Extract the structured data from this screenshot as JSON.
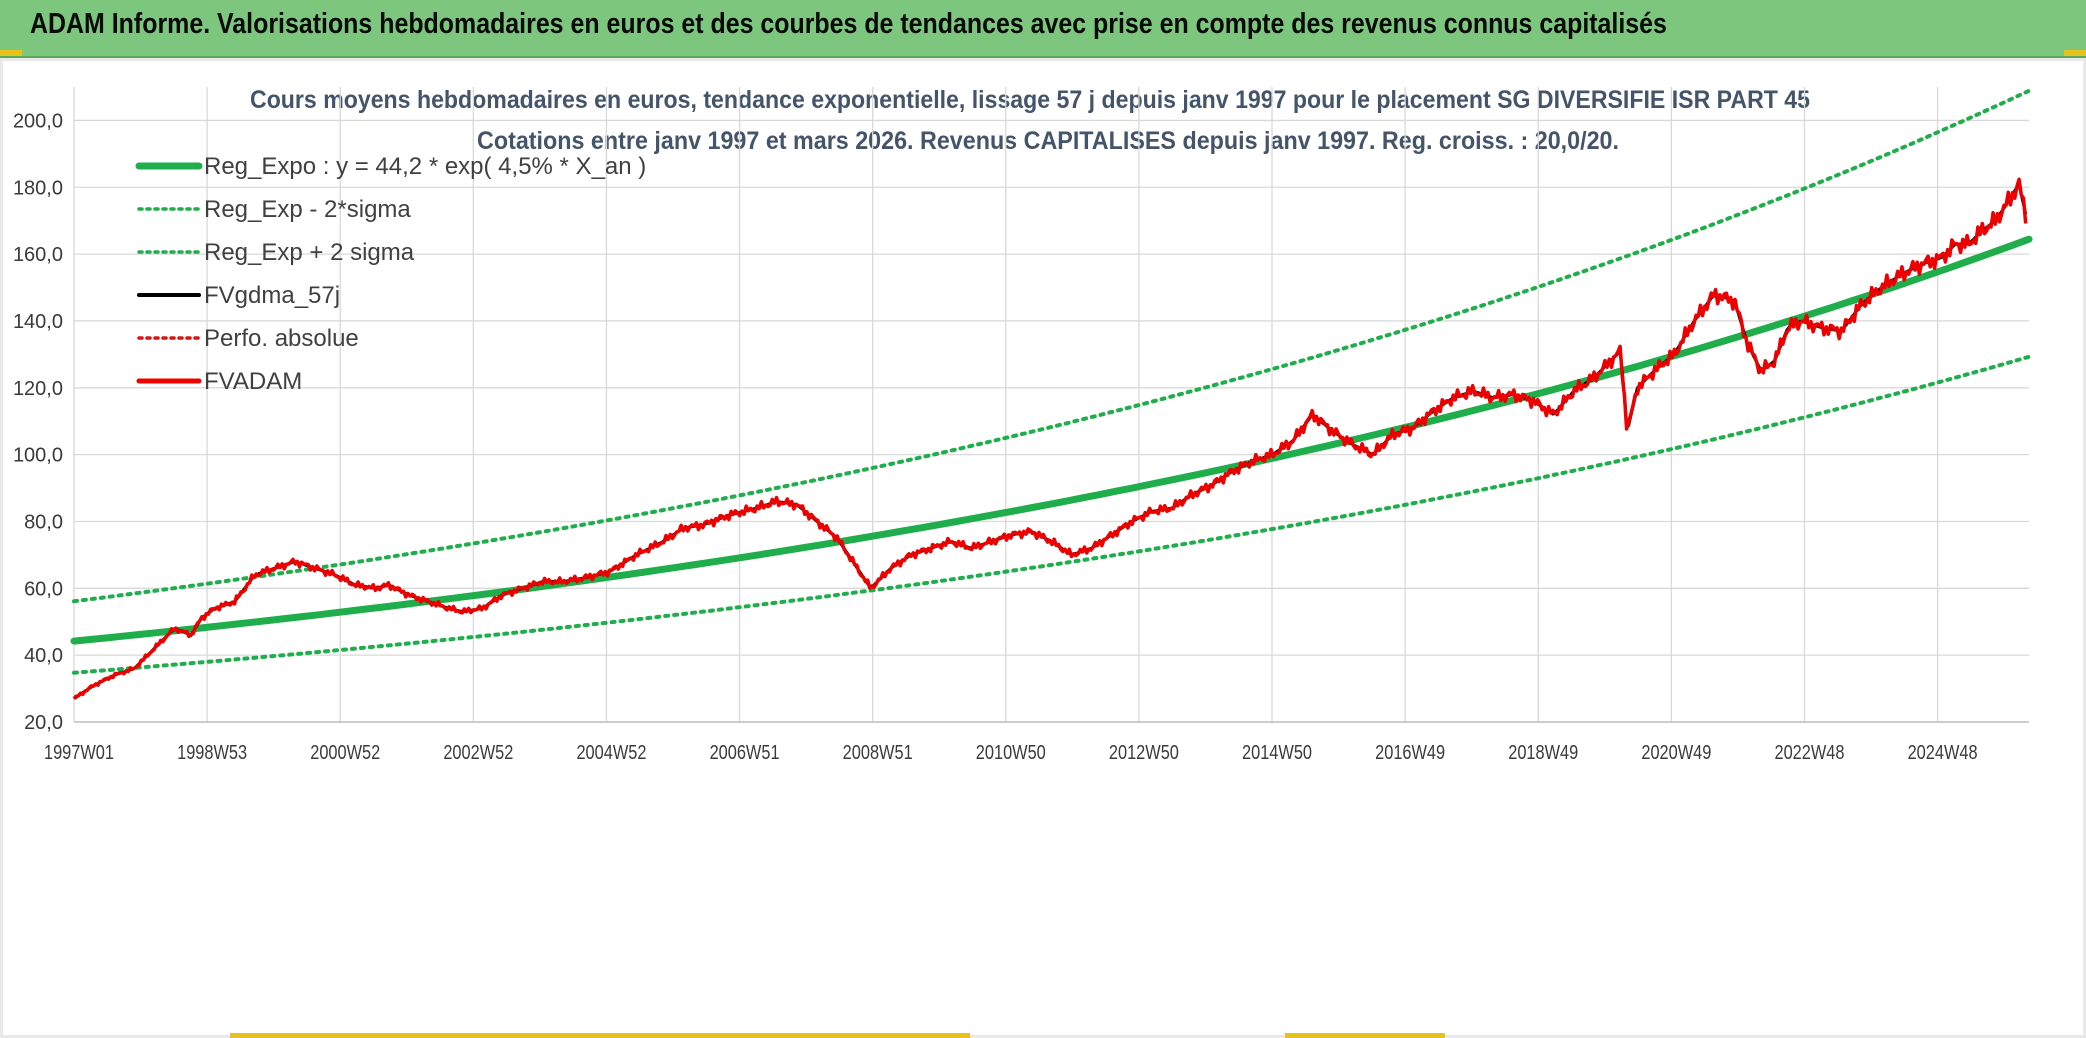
{
  "banner": {
    "title": "ADAM Informe. Valorisations hebdomadaires en euros et des courbes de tendances avec prise en compte des revenus connus capitalisés",
    "color": "#7dc67e"
  },
  "chart_data": {
    "type": "line",
    "title": "Cours moyens hebdomadaires en euros, tendance exponentielle, lissage 57 j depuis janv 1997 pour le placement SG DIVERSIFIE ISR PART 45",
    "subtitle": "Cotations entre janv 1997 et mars 2026. Revenus CAPITALISES depuis janv 1997. Reg. croiss. : 20,0/20.",
    "xlabel": "",
    "ylabel": "",
    "ylim": [
      20,
      210
    ],
    "xlim": [
      1997.0,
      2026.2
    ],
    "grid": true,
    "legend_position": "top-left",
    "y_ticks": [
      "20,0",
      "40,0",
      "60,0",
      "80,0",
      "100,0",
      "120,0",
      "140,0",
      "160,0",
      "180,0",
      "200,0"
    ],
    "x_ticks": [
      "1997W01",
      "1998W53",
      "2000W52",
      "2002W52",
      "2004W52",
      "2006W51",
      "2008W51",
      "2010W50",
      "2012W50",
      "2014W50",
      "2016W49",
      "2018W49",
      "2020W49",
      "2022W48",
      "2024W48"
    ],
    "series": [
      {
        "name": "Reg_Expo : y = 44,2 * exp( 4,5% *  X_an )",
        "kind": "trend",
        "color": "#1fae4b",
        "style": "solid",
        "a": 44.2,
        "rate": 0.045,
        "factor": 1.0
      },
      {
        "name": "Reg_Exp - 2*sigma",
        "kind": "trend",
        "color": "#1fae4b",
        "style": "dotted",
        "a": 44.2,
        "rate": 0.045,
        "factor": 0.786
      },
      {
        "name": "Reg_Exp + 2 sigma",
        "kind": "trend",
        "color": "#1fae4b",
        "style": "dotted",
        "a": 44.2,
        "rate": 0.045,
        "factor": 1.27
      },
      {
        "name": "FVgdma_57j",
        "kind": "smoothed",
        "color": "#000000",
        "style": "solid"
      },
      {
        "name": "Perfo. absolue",
        "kind": "absolute",
        "color": "#e01010",
        "style": "dotted"
      },
      {
        "name": "FVADAM",
        "kind": "price",
        "color": "#ee0000",
        "style": "solid",
        "x": [
          1997.0,
          1997.3,
          1997.6,
          1997.9,
          1998.2,
          1998.5,
          1998.75,
          1998.9,
          1999.1,
          1999.4,
          1999.7,
          2000.0,
          2000.3,
          2000.6,
          2000.9,
          2001.2,
          2001.5,
          2001.7,
          2002.0,
          2002.3,
          2002.6,
          2002.8,
          2003.1,
          2003.4,
          2003.7,
          2004.0,
          2004.3,
          2004.6,
          2005.0,
          2005.4,
          2005.8,
          2006.1,
          2006.4,
          2006.8,
          2007.2,
          2007.5,
          2007.8,
          2008.1,
          2008.4,
          2008.7,
          2008.9,
          2009.2,
          2009.5,
          2009.8,
          2010.1,
          2010.4,
          2010.7,
          2011.0,
          2011.3,
          2011.6,
          2011.9,
          2012.2,
          2012.5,
          2012.8,
          2013.1,
          2013.4,
          2013.7,
          2014.0,
          2014.3,
          2014.6,
          2014.9,
          2015.2,
          2015.5,
          2015.8,
          2016.1,
          2016.4,
          2016.7,
          2017.0,
          2017.3,
          2017.6,
          2017.9,
          2018.2,
          2018.5,
          2018.8,
          2019.1,
          2019.4,
          2019.7,
          2020.0,
          2020.1,
          2020.2,
          2020.35,
          2020.6,
          2020.9,
          2021.2,
          2021.5,
          2021.8,
          2022.0,
          2022.2,
          2022.4,
          2022.6,
          2022.8,
          2023.1,
          2023.4,
          2023.7,
          2024.0,
          2024.3,
          2024.6,
          2024.9,
          2025.1,
          2025.3,
          2025.5,
          2025.7,
          2025.9,
          2026.05,
          2026.15
        ],
        "y": [
          27,
          31,
          34,
          36,
          42,
          48,
          46,
          51,
          54,
          56,
          64,
          66,
          68,
          66,
          64,
          61,
          60,
          61,
          58,
          56,
          54,
          53,
          54,
          58,
          60,
          62,
          62,
          63,
          65,
          70,
          74,
          78,
          79,
          82,
          84,
          86,
          85,
          80,
          75,
          66,
          60,
          66,
          70,
          72,
          74,
          72,
          74,
          76,
          77,
          74,
          70,
          72,
          76,
          80,
          83,
          84,
          88,
          91,
          95,
          98,
          100,
          104,
          112,
          107,
          103,
          100,
          106,
          108,
          113,
          117,
          119,
          117,
          118,
          116,
          112,
          119,
          123,
          129,
          131,
          107,
          120,
          125,
          130,
          140,
          148,
          146,
          133,
          125,
          128,
          138,
          140,
          138,
          137,
          145,
          150,
          154,
          157,
          159,
          163,
          163,
          167,
          170,
          176,
          181,
          172
        ]
      }
    ]
  }
}
